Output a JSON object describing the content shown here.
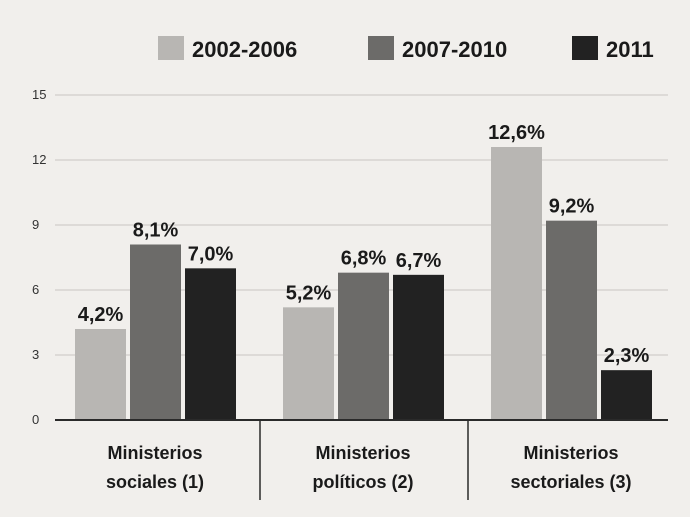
{
  "chart_data": {
    "type": "bar",
    "title": "",
    "xlabel": "",
    "ylabel": "",
    "ylim": [
      0,
      15
    ],
    "yticks": [
      "0",
      "3",
      "6",
      "9",
      "12",
      "15"
    ],
    "grid": true,
    "legend_placement": "top",
    "categories": [
      [
        "Ministerios",
        "sociales (1)"
      ],
      [
        "Ministerios",
        "políticos (2)"
      ],
      [
        "Ministerios",
        "sectoriales (3)"
      ]
    ],
    "series": [
      {
        "name": "2002-2006",
        "color": "#b8b6b3",
        "values": [
          4.2,
          5.2,
          12.6
        ],
        "labels": [
          "4,2%",
          "5,2%",
          "12,6%"
        ]
      },
      {
        "name": "2007-2010",
        "color": "#6c6b69",
        "values": [
          8.1,
          6.8,
          9.2
        ],
        "labels": [
          "8,1%",
          "6,8%",
          "9,2%"
        ]
      },
      {
        "name": "2011",
        "color": "#222222",
        "values": [
          7.0,
          6.7,
          2.3
        ],
        "labels": [
          "7,0%",
          "6,7%",
          "2,3%"
        ]
      }
    ]
  }
}
